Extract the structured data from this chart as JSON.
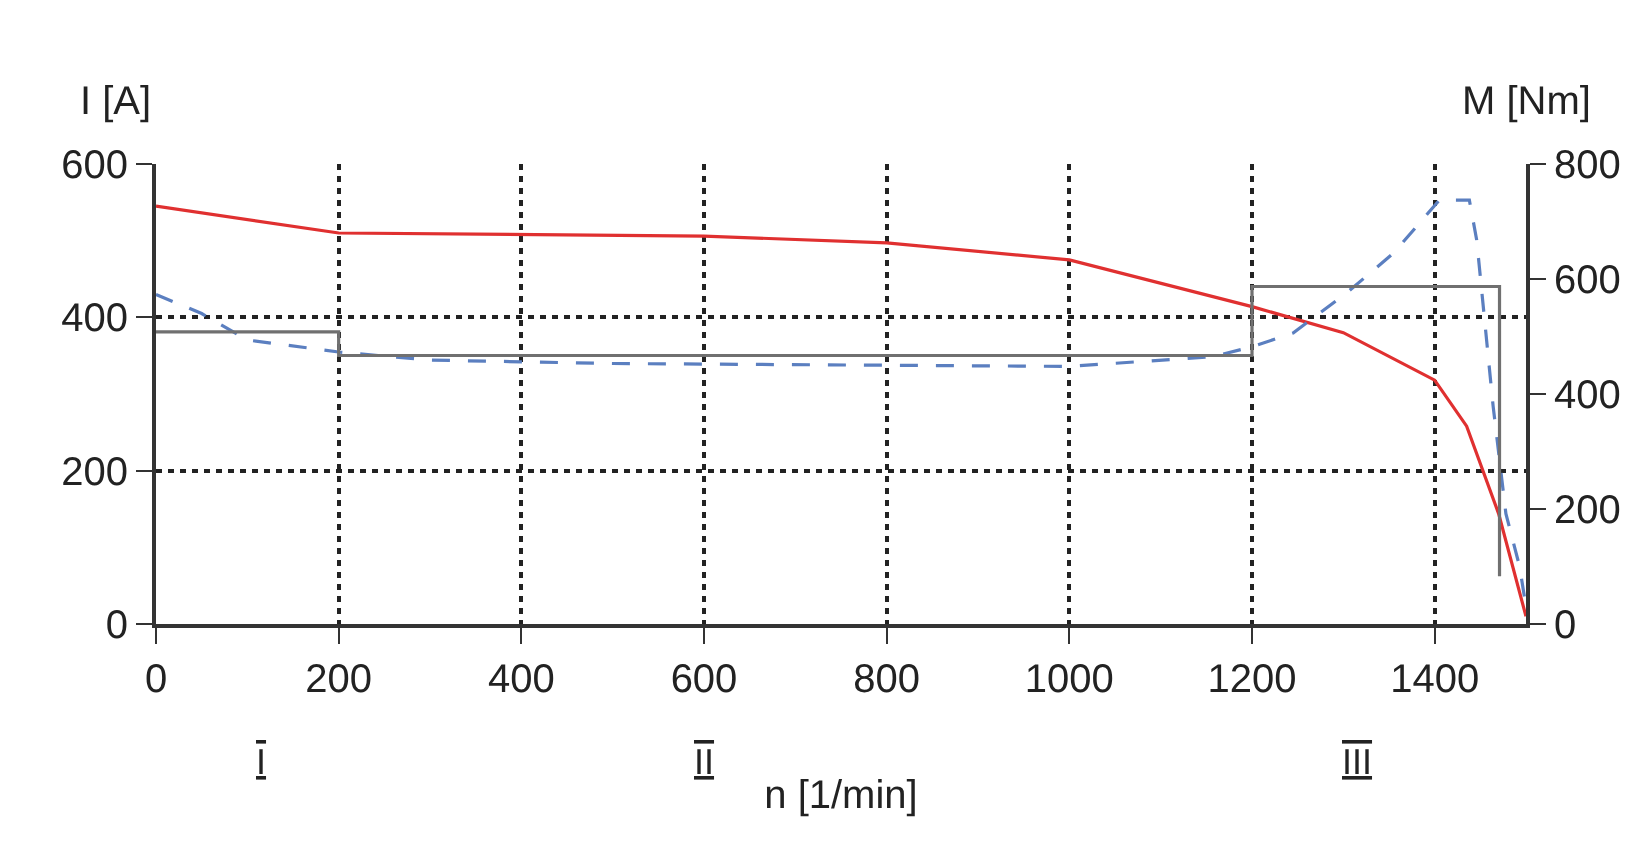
{
  "chart_data": {
    "type": "line",
    "xlabel": "n [1/min]",
    "ylabel": "I [A]",
    "y2label": "M [Nm]",
    "xlim": [
      0,
      1500
    ],
    "xticks": [
      0,
      200,
      400,
      600,
      800,
      1000,
      1200,
      1400
    ],
    "ylim": [
      0,
      600
    ],
    "yticks": [
      0,
      200,
      400,
      600
    ],
    "y2lim": [
      0,
      800
    ],
    "y2ticks": [
      0,
      200,
      400,
      600,
      800
    ],
    "grid": true,
    "marker": "none",
    "series": [
      {
        "color": "#e03030",
        "line_style": "solid",
        "x": [
          0,
          200,
          600,
          800,
          1000,
          1200,
          1300,
          1400,
          1435,
          1470,
          1500
        ],
        "values": [
          545,
          510,
          506,
          497,
          475,
          414,
          380,
          318,
          258,
          144,
          10
        ]
      },
      {
        "color": "#5b7fc0",
        "line_style": "dashed",
        "axis": "y2",
        "x": [
          0,
          50,
          100,
          200,
          300,
          500,
          1000,
          1157,
          1200,
          1245,
          1303,
          1355,
          1405,
          1427,
          1438,
          1446,
          1464,
          1478,
          1493,
          1500
        ],
        "values": [
          573,
          540,
          494,
          473,
          459,
          453,
          448,
          465,
          482,
          506,
          575,
          645,
          737,
          737,
          737,
          668,
          379,
          192,
          100,
          30
        ]
      },
      {
        "color": "#707070",
        "line_style": "solid",
        "axis": "y2",
        "x": [
          0,
          200,
          200,
          1200,
          1200,
          1471,
          1471
        ],
        "values": [
          508,
          508,
          467,
          467,
          587,
          587,
          83
        ]
      }
    ],
    "annotations": [
      "I",
      "II",
      "III"
    ]
  }
}
